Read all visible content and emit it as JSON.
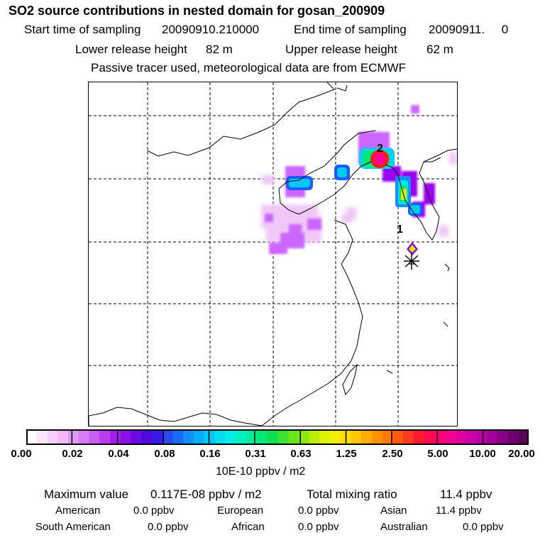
{
  "header": {
    "title": "SO2 source contributions in nested domain for gosan_200909",
    "start_label": "Start time of sampling",
    "start_value": "20090910.210000",
    "end_label": "End time of sampling",
    "end_value": "20090911.     0",
    "lower_label": "Lower release height",
    "lower_value": "82 m",
    "upper_label": "Upper release height",
    "upper_value": "62 m",
    "note": "Passive tracer used, meteorological data are from ECMWF"
  },
  "map": {
    "receptor_marker": "asterisk-icon",
    "labels": [
      "1",
      "2"
    ],
    "plume_colors": [
      "#f0c8f8",
      "#cc66ff",
      "#9900ee",
      "#1a8cff",
      "#00e6e6",
      "#00e676",
      "#ccf200",
      "#ff1a1a",
      "#ff0099"
    ]
  },
  "colorbar": {
    "ticks": [
      "0.00",
      "0.02",
      "0.04",
      "0.08",
      "0.16",
      "0.31",
      "0.63",
      "1.25",
      "2.50",
      "5.00",
      "10.00",
      "20.00"
    ],
    "colors": [
      "#ffffff",
      "#fbe8fd",
      "#f6d0fb",
      "#f0b8f8",
      "#e39af5",
      "#d77cf2",
      "#c95df0",
      "#b83eee",
      "#a31ee8",
      "#8a10e6",
      "#6d0ae4",
      "#4f08e0",
      "#3a18e8",
      "#2848f0",
      "#1a6cf6",
      "#1090f8",
      "#08aef8",
      "#00c8f4",
      "#00def0",
      "#00f0e8",
      "#00f2c4",
      "#00ee9c",
      "#00e874",
      "#10e050",
      "#3ce030",
      "#66e41c",
      "#90ea10",
      "#b8ee08",
      "#dcf200",
      "#f2f000",
      "#ffe000",
      "#ffc800",
      "#ffae00",
      "#ff9400",
      "#ff7a00",
      "#ff5a10",
      "#ff3a20",
      "#ff1a30",
      "#ff0a50",
      "#ff0070",
      "#f20090",
      "#e000a0",
      "#cc00a8",
      "#b800a8",
      "#a00098",
      "#880088",
      "#700070",
      "#580058"
    ],
    "unit": "10E-10 ppbv / m2"
  },
  "summary": {
    "max_label": "Maximum value",
    "max_value": "0.117E-08 ppbv / m2",
    "total_label": "Total mixing ratio",
    "total_value": "11.4 ppbv",
    "american_label": "American",
    "american_value": "0.0 ppbv",
    "european_label": "European",
    "european_value": "0.0 ppbv",
    "asian_label": "Asian",
    "asian_value": "11.4 ppbv",
    "south_american_label": "South American",
    "south_american_value": "0.0 ppbv",
    "african_label": "African",
    "african_value": "0.0 ppbv",
    "australian_label": "Australian",
    "australian_value": "0.0 ppbv"
  }
}
